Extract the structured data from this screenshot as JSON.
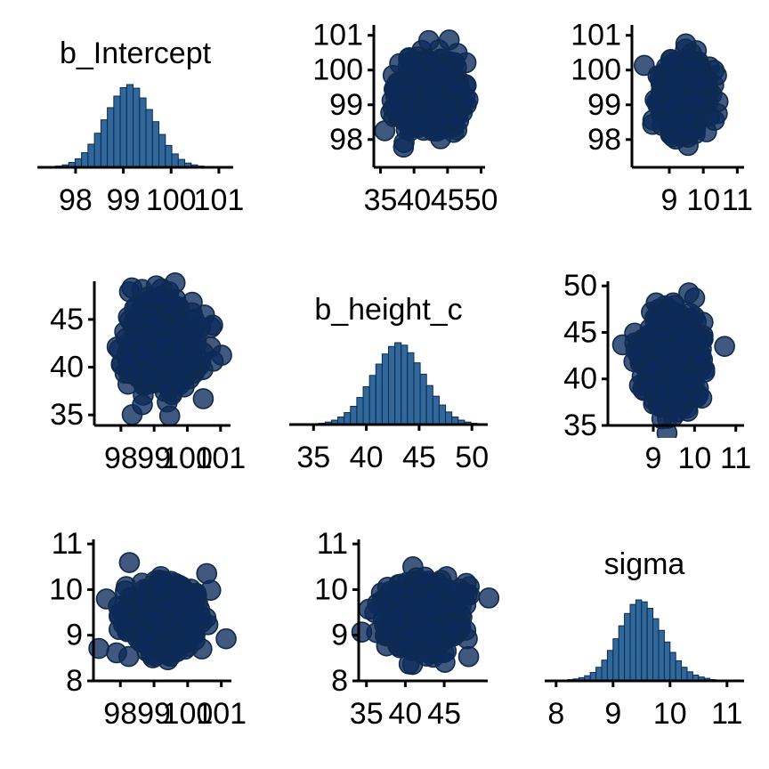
{
  "chart_data": [
    {
      "panel": "1-1",
      "type": "histogram",
      "title": "b_Intercept",
      "xlim": [
        97.2,
        101.3
      ],
      "xticks": [
        98,
        99,
        100,
        101
      ],
      "xtick_labels": [
        "98",
        "99",
        "100",
        "101"
      ],
      "bin_start": 97.45,
      "bin_width": 0.135,
      "counts": [
        1,
        2,
        4,
        8,
        14,
        24,
        38,
        56,
        78,
        98,
        117,
        131,
        136,
        130,
        114,
        95,
        75,
        54,
        36,
        22,
        13,
        7,
        4,
        2,
        1
      ],
      "colors": {
        "bar": "#31689b",
        "edge": "#0b2a4e"
      }
    },
    {
      "panel": "1-2",
      "type": "scatter",
      "x_variable": "b_height_c",
      "y_variable": "b_Intercept",
      "xlim": [
        34.0,
        50.6
      ],
      "ylim": [
        97.2,
        101.3
      ],
      "xticks": [
        35,
        40,
        45,
        50
      ],
      "xtick_labels": [
        "35",
        "40",
        "45",
        "50"
      ],
      "yticks": [
        98,
        99,
        100,
        101
      ],
      "ytick_labels": [
        "98",
        "99",
        "100",
        "101"
      ],
      "x_mean": 42.2,
      "x_sd": 2.3,
      "y_mean": 99.25,
      "y_sd": 0.5,
      "colors": {
        "fill": "#0c2a5a",
        "edge": "#0f2a4d"
      }
    },
    {
      "panel": "1-3",
      "type": "scatter",
      "x_variable": "sigma",
      "y_variable": "b_Intercept",
      "xlim": [
        7.9,
        11.2
      ],
      "ylim": [
        97.2,
        101.3
      ],
      "xticks": [
        9,
        10,
        11
      ],
      "xtick_labels": [
        "9",
        "10",
        "11"
      ],
      "yticks": [
        98,
        99,
        100,
        101
      ],
      "ytick_labels": [
        "98",
        "99",
        "100",
        "101"
      ],
      "x_mean": 9.4,
      "x_sd": 0.35,
      "y_mean": 99.25,
      "y_sd": 0.5,
      "colors": {
        "fill": "#0c2a5a",
        "edge": "#0f2a4d"
      }
    },
    {
      "panel": "2-1",
      "type": "scatter",
      "x_variable": "b_Intercept",
      "y_variable": "b_height_c",
      "xlim": [
        97.2,
        101.3
      ],
      "ylim": [
        33.9,
        49.0
      ],
      "xticks": [
        98,
        99,
        100,
        101
      ],
      "xtick_labels": [
        "98",
        "99",
        "100",
        "101"
      ],
      "yticks": [
        35,
        40,
        45
      ],
      "ytick_labels": [
        "35",
        "40",
        "45"
      ],
      "x_mean": 99.25,
      "x_sd": 0.5,
      "y_mean": 42.2,
      "y_sd": 2.3,
      "colors": {
        "fill": "#0c2a5a",
        "edge": "#0f2a4d"
      }
    },
    {
      "panel": "2-2",
      "type": "histogram",
      "title": "b_height_c",
      "xlim": [
        32.7,
        51.5
      ],
      "xticks": [
        35,
        40,
        45,
        50
      ],
      "xtick_labels": [
        "35",
        "40",
        "45",
        "50"
      ],
      "bin_start": 34.9,
      "bin_width": 0.6,
      "counts": [
        1,
        2,
        4,
        7,
        12,
        19,
        29,
        43,
        60,
        78,
        96,
        112,
        124,
        130,
        126,
        114,
        98,
        80,
        62,
        45,
        31,
        20,
        12,
        7,
        4,
        2,
        1
      ],
      "colors": {
        "bar": "#31689b",
        "edge": "#0b2a4e"
      }
    },
    {
      "panel": "2-3",
      "type": "scatter",
      "x_variable": "sigma",
      "y_variable": "b_height_c",
      "xlim": [
        7.9,
        11.2
      ],
      "ylim": [
        35.0,
        50.5
      ],
      "xticks": [
        9,
        10,
        11
      ],
      "xtick_labels": [
        "9",
        "10",
        "11"
      ],
      "yticks": [
        35,
        40,
        45,
        50
      ],
      "ytick_labels": [
        "35",
        "40",
        "45",
        "50"
      ],
      "x_mean": 9.4,
      "x_sd": 0.35,
      "y_mean": 42.2,
      "y_sd": 2.3,
      "colors": {
        "fill": "#0c2a5a",
        "edge": "#0f2a4d"
      }
    },
    {
      "panel": "3-1",
      "type": "scatter",
      "x_variable": "b_Intercept",
      "y_variable": "sigma",
      "xlim": [
        97.2,
        101.3
      ],
      "ylim": [
        8.0,
        11.1
      ],
      "xticks": [
        98,
        99,
        100,
        101
      ],
      "xtick_labels": [
        "98",
        "99",
        "100",
        "101"
      ],
      "yticks": [
        8,
        9,
        10,
        11
      ],
      "ytick_labels": [
        "8",
        "9",
        "10",
        "11"
      ],
      "x_mean": 99.25,
      "x_sd": 0.5,
      "y_mean": 9.4,
      "y_sd": 0.35,
      "colors": {
        "fill": "#0c2a5a",
        "edge": "#0f2a4d"
      }
    },
    {
      "panel": "3-2",
      "type": "scatter",
      "x_variable": "b_height_c",
      "y_variable": "sigma",
      "xlim": [
        34.0,
        50.6
      ],
      "ylim": [
        8.0,
        11.1
      ],
      "xticks": [
        35,
        40,
        45
      ],
      "xtick_labels": [
        "35",
        "40",
        "45"
      ],
      "yticks": [
        8,
        9,
        10,
        11
      ],
      "ytick_labels": [
        "8",
        "9",
        "10",
        "11"
      ],
      "x_mean": 42.2,
      "x_sd": 2.3,
      "y_mean": 9.4,
      "y_sd": 0.35,
      "colors": {
        "fill": "#0c2a5a",
        "edge": "#0f2a4d"
      }
    },
    {
      "panel": "3-3",
      "type": "histogram",
      "title": "sigma",
      "xlim": [
        7.8,
        11.3
      ],
      "xticks": [
        8,
        9,
        10,
        11
      ],
      "xtick_labels": [
        "8",
        "9",
        "10",
        "11"
      ],
      "bin_start": 8.0,
      "bin_width": 0.1,
      "counts": [
        1,
        1,
        2,
        3,
        5,
        8,
        13,
        21,
        32,
        47,
        65,
        85,
        104,
        118,
        125,
        122,
        112,
        96,
        78,
        60,
        44,
        31,
        21,
        14,
        9,
        6,
        4,
        2,
        1,
        1
      ],
      "colors": {
        "bar": "#31689b",
        "edge": "#0b2a4e"
      }
    }
  ]
}
